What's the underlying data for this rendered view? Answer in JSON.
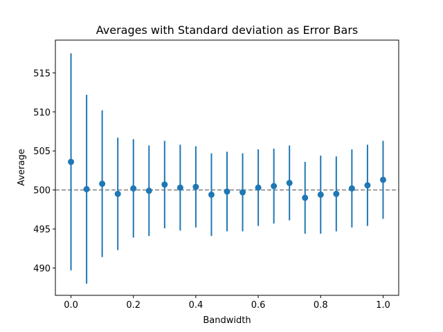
{
  "chart_data": {
    "type": "scatter",
    "title": "Averages with Standard deviation as Error Bars",
    "xlabel": "Bandwidth",
    "ylabel": "Average",
    "xlim": [
      -0.05,
      1.05
    ],
    "ylim": [
      486.5,
      519.2
    ],
    "xticks": [
      0.0,
      0.2,
      0.4,
      0.6,
      0.8,
      1.0
    ],
    "xtick_labels": [
      "0.0",
      "0.2",
      "0.4",
      "0.6",
      "0.8",
      "1.0"
    ],
    "yticks": [
      490,
      495,
      500,
      505,
      510,
      515
    ],
    "ytick_labels": [
      "490",
      "495",
      "500",
      "505",
      "510",
      "515"
    ],
    "grid": false,
    "reference_line": {
      "y": 500,
      "style": "dashed",
      "color": "#808080"
    },
    "series": [
      {
        "color": "#1f77b4",
        "x": [
          0.0,
          0.05,
          0.1,
          0.15,
          0.2,
          0.25,
          0.3,
          0.35,
          0.4,
          0.45,
          0.5,
          0.55,
          0.6,
          0.65,
          0.7,
          0.75,
          0.8,
          0.85,
          0.9,
          0.95,
          1.0
        ],
        "y": [
          503.6,
          500.1,
          500.8,
          499.5,
          500.2,
          499.9,
          500.7,
          500.3,
          500.4,
          499.4,
          499.8,
          499.7,
          500.3,
          500.5,
          500.9,
          499.0,
          499.4,
          499.5,
          500.2,
          500.6,
          501.3
        ],
        "err": [
          13.9,
          12.1,
          9.4,
          7.2,
          6.3,
          5.8,
          5.6,
          5.5,
          5.2,
          5.3,
          5.1,
          5.0,
          4.9,
          4.8,
          4.8,
          4.6,
          5.0,
          4.8,
          5.0,
          5.2,
          5.0
        ]
      }
    ]
  }
}
